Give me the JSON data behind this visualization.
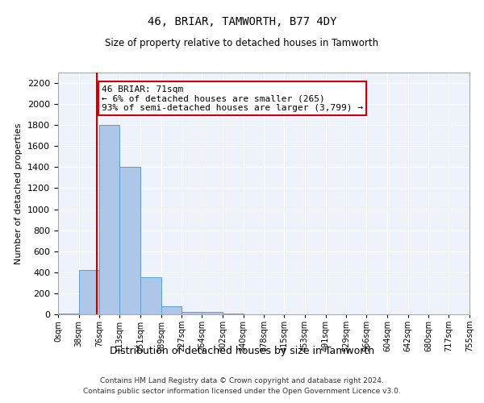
{
  "title": "46, BRIAR, TAMWORTH, B77 4DY",
  "subtitle": "Size of property relative to detached houses in Tamworth",
  "xlabel": "Distribution of detached houses by size in Tamworth",
  "ylabel": "Number of detached properties",
  "bar_edges": [
    0,
    38,
    76,
    113,
    151,
    189,
    227,
    264,
    302,
    340,
    378,
    415,
    453,
    491,
    529,
    566,
    604,
    642,
    680,
    717,
    755
  ],
  "bar_heights": [
    10,
    420,
    1800,
    1400,
    355,
    75,
    25,
    20,
    5,
    2,
    1,
    0,
    0,
    0,
    0,
    0,
    0,
    0,
    0,
    0
  ],
  "bar_color": "#aec6e8",
  "bar_edgecolor": "#5a9fd4",
  "property_size": 71,
  "vline_color": "#cc0000",
  "annotation_text": "46 BRIAR: 71sqm\n← 6% of detached houses are smaller (265)\n93% of semi-detached houses are larger (3,799) →",
  "annotation_boxcolor": "white",
  "annotation_box_edgecolor": "#cc0000",
  "ylim": [
    0,
    2300
  ],
  "yticks": [
    0,
    200,
    400,
    600,
    800,
    1000,
    1200,
    1400,
    1600,
    1800,
    2000,
    2200
  ],
  "background_color": "#eef2fb",
  "grid_color": "white",
  "footer_line1": "Contains HM Land Registry data © Crown copyright and database right 2024.",
  "footer_line2": "Contains public sector information licensed under the Open Government Licence v3.0."
}
